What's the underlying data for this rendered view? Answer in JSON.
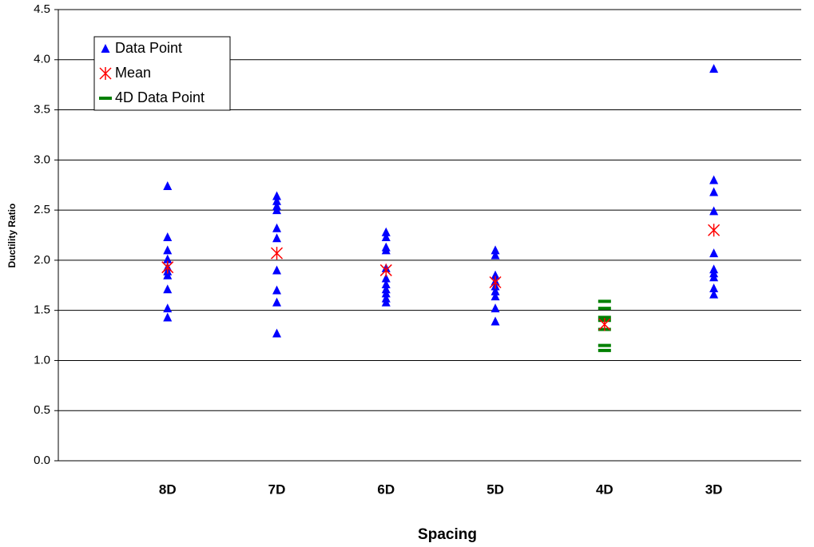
{
  "chart_data": {
    "type": "strip",
    "x_label": "Spacing",
    "y_label": "Ductility Ratio",
    "categories": [
      "8D",
      "7D",
      "6D",
      "5D",
      "4D",
      "3D"
    ],
    "series": [
      {
        "name": "Data Point",
        "color": "#0000ff",
        "marker": "triangle",
        "values": [
          [
            2.74,
            2.23,
            2.1,
            2.01,
            1.93,
            1.89,
            1.85,
            1.71,
            1.52,
            1.43
          ],
          [
            2.64,
            2.59,
            2.54,
            2.5,
            2.32,
            2.22,
            1.9,
            1.7,
            1.58,
            1.27
          ],
          [
            2.28,
            2.23,
            2.13,
            2.1,
            1.92,
            1.82,
            1.76,
            1.71,
            1.67,
            1.62,
            1.58
          ],
          [
            2.1,
            2.05,
            1.85,
            1.79,
            1.74,
            1.69,
            1.64,
            1.52,
            1.39
          ],
          [],
          [
            3.91,
            2.8,
            2.68,
            2.49,
            2.07,
            1.91,
            1.87,
            1.83,
            1.72,
            1.66
          ]
        ]
      },
      {
        "name": "Mean",
        "color": "#ff0000",
        "marker": "star",
        "values": [
          1.93,
          2.07,
          1.9,
          1.78,
          1.36,
          2.3
        ]
      },
      {
        "name": "4D Data Point",
        "color": "#008000",
        "marker": "dash",
        "values": [
          [],
          [],
          [],
          [],
          [
            1.59,
            1.52,
            1.43,
            1.4,
            1.31,
            1.15,
            1.1
          ],
          []
        ]
      }
    ],
    "ylim": [
      0,
      4.5
    ],
    "yticks": [
      {
        "value": 0,
        "label": "0.0"
      },
      0.5,
      {
        "value": 1,
        "label": "1.0"
      },
      1.5,
      {
        "value": 2,
        "label": "2.0"
      },
      2.5,
      {
        "value": 3,
        "label": "3.0"
      },
      3.5,
      {
        "value": 4,
        "label": "4.0"
      },
      4.5
    ],
    "grid": true,
    "legend": "upper left"
  }
}
